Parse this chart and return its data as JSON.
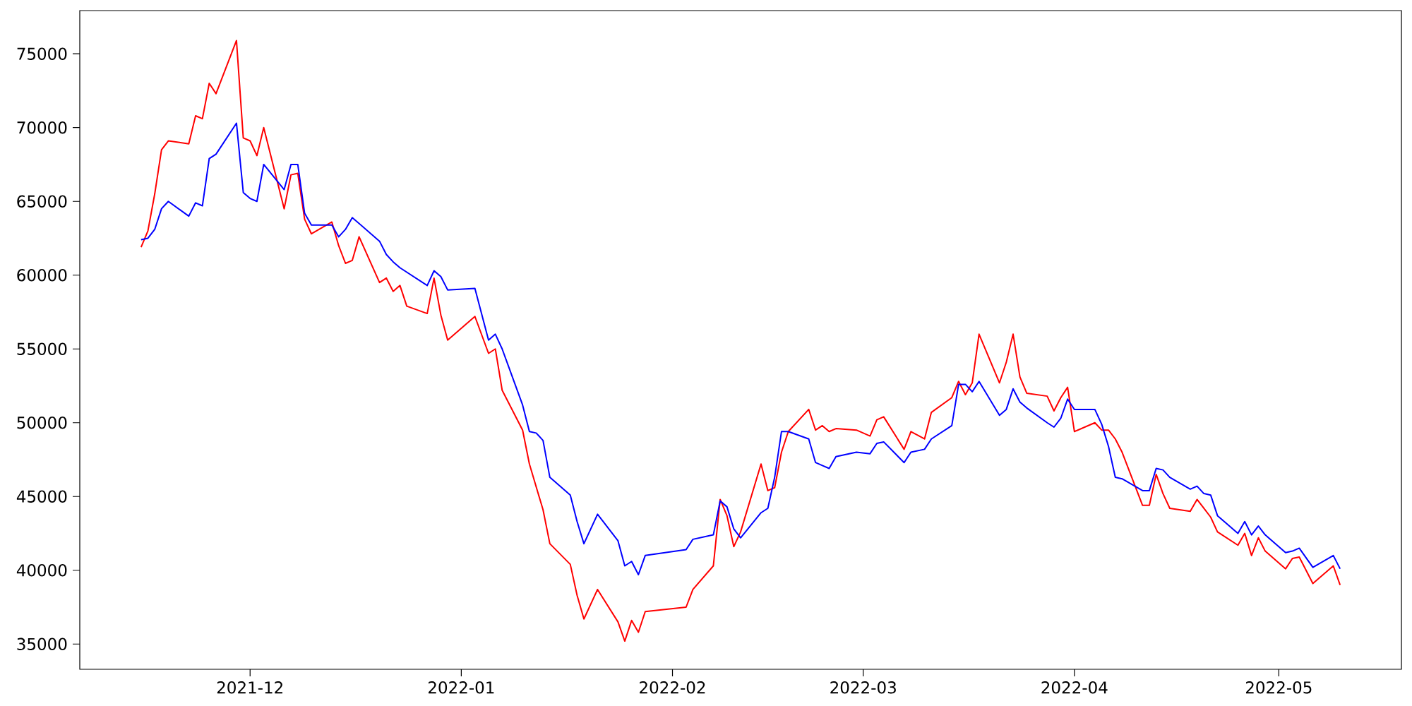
{
  "chart_data": {
    "type": "line",
    "xlim": [
      "2021-11-06",
      "2022-05-19"
    ],
    "ylim": [
      33290,
      77930
    ],
    "xticks": [
      "2021-12",
      "2022-01",
      "2022-02",
      "2022-03",
      "2022-04",
      "2022-05"
    ],
    "yticks": [
      35000,
      40000,
      45000,
      50000,
      55000,
      60000,
      65000,
      70000,
      75000
    ],
    "series": [
      {
        "color": "#ff0000",
        "x": [
          "2021-11-15",
          "2021-11-16",
          "2021-11-17",
          "2021-11-18",
          "2021-11-19",
          "2021-11-22",
          "2021-11-23",
          "2021-11-24",
          "2021-11-25",
          "2021-11-26",
          "2021-11-29",
          "2021-11-30",
          "2021-12-01",
          "2021-12-02",
          "2021-12-03",
          "2021-12-06",
          "2021-12-07",
          "2021-12-08",
          "2021-12-09",
          "2021-12-10",
          "2021-12-13",
          "2021-12-14",
          "2021-12-15",
          "2021-12-16",
          "2021-12-17",
          "2021-12-20",
          "2021-12-21",
          "2021-12-22",
          "2021-12-23",
          "2021-12-24",
          "2021-12-27",
          "2021-12-28",
          "2021-12-29",
          "2021-12-30",
          "2022-01-03",
          "2022-01-05",
          "2022-01-06",
          "2022-01-07",
          "2022-01-10",
          "2022-01-11",
          "2022-01-13",
          "2022-01-14",
          "2022-01-17",
          "2022-01-18",
          "2022-01-19",
          "2022-01-21",
          "2022-01-24",
          "2022-01-25",
          "2022-01-26",
          "2022-01-27",
          "2022-01-28",
          "2022-02-03",
          "2022-02-04",
          "2022-02-07",
          "2022-02-08",
          "2022-02-09",
          "2022-02-10",
          "2022-02-11",
          "2022-02-14",
          "2022-02-15",
          "2022-02-16",
          "2022-02-17",
          "2022-02-18",
          "2022-02-21",
          "2022-02-22",
          "2022-02-23",
          "2022-02-24",
          "2022-02-25",
          "2022-02-28",
          "2022-03-02",
          "2022-03-03",
          "2022-03-04",
          "2022-03-07",
          "2022-03-08",
          "2022-03-10",
          "2022-03-11",
          "2022-03-14",
          "2022-03-15",
          "2022-03-16",
          "2022-03-17",
          "2022-03-18",
          "2022-03-21",
          "2022-03-22",
          "2022-03-23",
          "2022-03-24",
          "2022-03-25",
          "2022-03-28",
          "2022-03-29",
          "2022-03-30",
          "2022-03-31",
          "2022-04-01",
          "2022-04-04",
          "2022-04-05",
          "2022-04-06",
          "2022-04-07",
          "2022-04-08",
          "2022-04-11",
          "2022-04-12",
          "2022-04-13",
          "2022-04-14",
          "2022-04-15",
          "2022-04-18",
          "2022-04-19",
          "2022-04-20",
          "2022-04-21",
          "2022-04-22",
          "2022-04-25",
          "2022-04-26",
          "2022-04-27",
          "2022-04-28",
          "2022-04-29",
          "2022-05-02",
          "2022-05-03",
          "2022-05-04",
          "2022-05-06",
          "2022-05-09",
          "2022-05-10"
        ],
        "values": [
          61900,
          63000,
          65500,
          68500,
          69100,
          68900,
          70800,
          70600,
          73000,
          72300,
          75900,
          69300,
          69100,
          68100,
          70000,
          64500,
          66800,
          66900,
          63800,
          62800,
          63600,
          62000,
          60800,
          61000,
          62600,
          59500,
          59800,
          58900,
          59300,
          57900,
          57400,
          59800,
          57300,
          55600,
          57200,
          54700,
          55000,
          52200,
          49500,
          47200,
          44100,
          41800,
          40400,
          38300,
          36700,
          38700,
          36500,
          35200,
          36600,
          35800,
          37200,
          37500,
          38700,
          40300,
          44800,
          43700,
          41600,
          42600,
          47200,
          45400,
          45600,
          48000,
          49400,
          50900,
          49500,
          49800,
          49400,
          49600,
          49500,
          49100,
          50200,
          50400,
          48200,
          49400,
          48900,
          50700,
          51700,
          52800,
          51900,
          52700,
          56000,
          52700,
          54100,
          56000,
          53100,
          52000,
          51800,
          50800,
          51700,
          52400,
          49400,
          50000,
          49500,
          49500,
          48900,
          48000,
          44400,
          44400,
          46500,
          45200,
          44200,
          44000,
          44800,
          44200,
          43600,
          42600,
          41700,
          42500,
          41000,
          42200,
          41300,
          40100,
          40800,
          40900,
          39100,
          40300,
          39000
        ]
      },
      {
        "color": "#0000ff",
        "x": [
          "2021-11-15",
          "2021-11-16",
          "2021-11-17",
          "2021-11-18",
          "2021-11-19",
          "2021-11-22",
          "2021-11-23",
          "2021-11-24",
          "2021-11-25",
          "2021-11-26",
          "2021-11-29",
          "2021-11-30",
          "2021-12-01",
          "2021-12-02",
          "2021-12-03",
          "2021-12-06",
          "2021-12-07",
          "2021-12-08",
          "2021-12-09",
          "2021-12-10",
          "2021-12-13",
          "2021-12-14",
          "2021-12-15",
          "2021-12-16",
          "2021-12-20",
          "2021-12-21",
          "2021-12-22",
          "2021-12-23",
          "2021-12-27",
          "2021-12-28",
          "2021-12-29",
          "2021-12-30",
          "2022-01-03",
          "2022-01-05",
          "2022-01-06",
          "2022-01-07",
          "2022-01-10",
          "2022-01-11",
          "2022-01-12",
          "2022-01-13",
          "2022-01-14",
          "2022-01-17",
          "2022-01-18",
          "2022-01-19",
          "2022-01-21",
          "2022-01-24",
          "2022-01-25",
          "2022-01-26",
          "2022-01-27",
          "2022-01-28",
          "2022-02-03",
          "2022-02-04",
          "2022-02-07",
          "2022-02-08",
          "2022-02-09",
          "2022-02-10",
          "2022-02-11",
          "2022-02-14",
          "2022-02-15",
          "2022-02-16",
          "2022-02-17",
          "2022-02-18",
          "2022-02-21",
          "2022-02-22",
          "2022-02-23",
          "2022-02-24",
          "2022-02-25",
          "2022-02-28",
          "2022-03-02",
          "2022-03-03",
          "2022-03-04",
          "2022-03-07",
          "2022-03-08",
          "2022-03-10",
          "2022-03-11",
          "2022-03-14",
          "2022-03-15",
          "2022-03-16",
          "2022-03-17",
          "2022-03-18",
          "2022-03-21",
          "2022-03-22",
          "2022-03-23",
          "2022-03-24",
          "2022-03-25",
          "2022-03-28",
          "2022-03-29",
          "2022-03-30",
          "2022-03-31",
          "2022-04-01",
          "2022-04-04",
          "2022-04-05",
          "2022-04-06",
          "2022-04-07",
          "2022-04-08",
          "2022-04-11",
          "2022-04-12",
          "2022-04-13",
          "2022-04-14",
          "2022-04-15",
          "2022-04-18",
          "2022-04-19",
          "2022-04-20",
          "2022-04-21",
          "2022-04-22",
          "2022-04-25",
          "2022-04-26",
          "2022-04-27",
          "2022-04-28",
          "2022-04-29",
          "2022-05-02",
          "2022-05-03",
          "2022-05-04",
          "2022-05-06",
          "2022-05-09",
          "2022-05-10"
        ],
        "values": [
          62400,
          62500,
          63100,
          64500,
          65000,
          64000,
          64900,
          64700,
          67900,
          68200,
          70300,
          65600,
          65200,
          65000,
          67500,
          65800,
          67500,
          67500,
          64200,
          63400,
          63400,
          62600,
          63100,
          63900,
          62300,
          61400,
          60900,
          60500,
          59300,
          60300,
          59900,
          59000,
          59100,
          55600,
          56000,
          55000,
          51200,
          49400,
          49300,
          48800,
          46300,
          45100,
          43300,
          41800,
          43800,
          42000,
          40300,
          40600,
          39700,
          41000,
          41400,
          42100,
          42400,
          44700,
          44300,
          42800,
          42200,
          43900,
          44200,
          46300,
          49400,
          49400,
          48900,
          47300,
          47100,
          46900,
          47700,
          48000,
          47900,
          48600,
          48700,
          47300,
          48000,
          48200,
          48900,
          49800,
          52600,
          52600,
          52100,
          52800,
          50500,
          50900,
          52300,
          51400,
          51000,
          50000,
          49700,
          50300,
          51600,
          50900,
          50900,
          49900,
          48400,
          46300,
          46200,
          45400,
          45400,
          46900,
          46800,
          46300,
          45500,
          45700,
          45200,
          45100,
          43700,
          42500,
          43300,
          42400,
          43000,
          42400,
          41200,
          41300,
          41500,
          40200,
          41000,
          40100
        ]
      }
    ]
  }
}
